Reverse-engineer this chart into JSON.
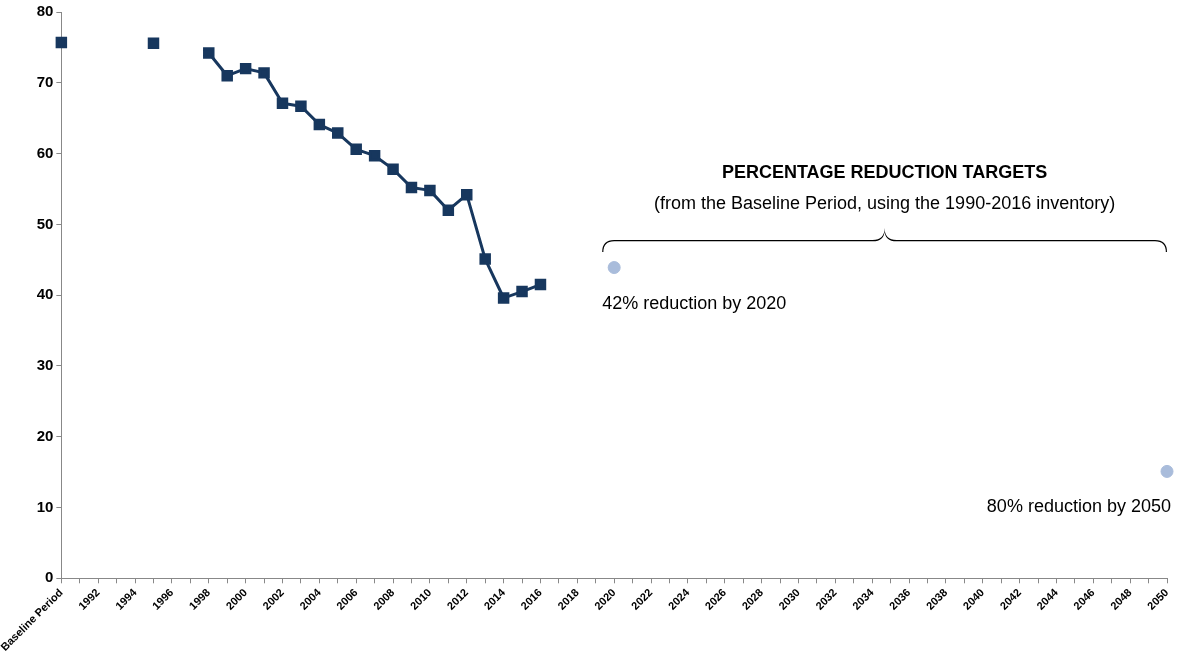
{
  "chart_data": {
    "type": "line",
    "categories": [
      "Baseline Period",
      null,
      "1992",
      null,
      "1994",
      null,
      "1996",
      null,
      "1998",
      null,
      "2000",
      null,
      "2002",
      null,
      "2004",
      null,
      "2006",
      null,
      "2008",
      null,
      "2010",
      null,
      "2012",
      null,
      "2014",
      null,
      "2016",
      null,
      "2018",
      null,
      "2020",
      null,
      "2022",
      null,
      "2024",
      null,
      "2026",
      null,
      "2028",
      null,
      "2030",
      null,
      "2032",
      null,
      "2034",
      null,
      "2036",
      null,
      "2038",
      null,
      "2040",
      null,
      "2042",
      null,
      "2044",
      null,
      "2046",
      null,
      "2048",
      null,
      "2050"
    ],
    "series": [
      {
        "marker": "square",
        "color": "#17375e",
        "values": [
          75.7,
          null,
          null,
          null,
          null,
          75.6,
          null,
          null,
          74.2,
          71.0,
          72.0,
          71.4,
          67.1,
          66.7,
          64.1,
          62.9,
          60.6,
          59.7,
          57.8,
          55.2,
          54.8,
          52.0,
          54.2,
          45.1,
          39.6,
          40.5,
          41.5,
          null,
          null,
          null,
          null,
          null,
          null,
          null,
          null,
          null,
          null,
          null,
          null,
          null,
          null,
          null,
          null,
          null,
          null,
          null,
          null,
          null,
          null,
          null,
          null,
          null,
          null,
          null,
          null,
          null,
          null,
          null,
          null,
          null,
          null
        ]
      },
      {
        "type": "scatter",
        "marker": "circle",
        "color": "#a9bcdb",
        "values": [
          null,
          null,
          null,
          null,
          null,
          null,
          null,
          null,
          null,
          null,
          null,
          null,
          null,
          null,
          null,
          null,
          null,
          null,
          null,
          null,
          null,
          null,
          null,
          null,
          null,
          null,
          null,
          null,
          null,
          null,
          43.9,
          null,
          null,
          null,
          null,
          null,
          null,
          null,
          null,
          null,
          null,
          null,
          null,
          null,
          null,
          null,
          null,
          null,
          null,
          null,
          null,
          null,
          null,
          null,
          null,
          null,
          null,
          null,
          null,
          null,
          15.1
        ]
      }
    ],
    "ylim": [
      0,
      80
    ],
    "yticks": [
      0,
      10,
      20,
      30,
      40,
      50,
      60,
      70,
      80
    ],
    "grid": false,
    "legend": false,
    "annotations": [
      "PERCENTAGE REDUCTION TARGETS",
      "(from the Baseline Period, using the 1990-2016 inventory)",
      {
        "text": "42% reduction by 2020",
        "x": "2020",
        "y": 43.9
      },
      {
        "text": "80% reduction by 2050",
        "x": "2050",
        "y": 15.1
      }
    ]
  }
}
